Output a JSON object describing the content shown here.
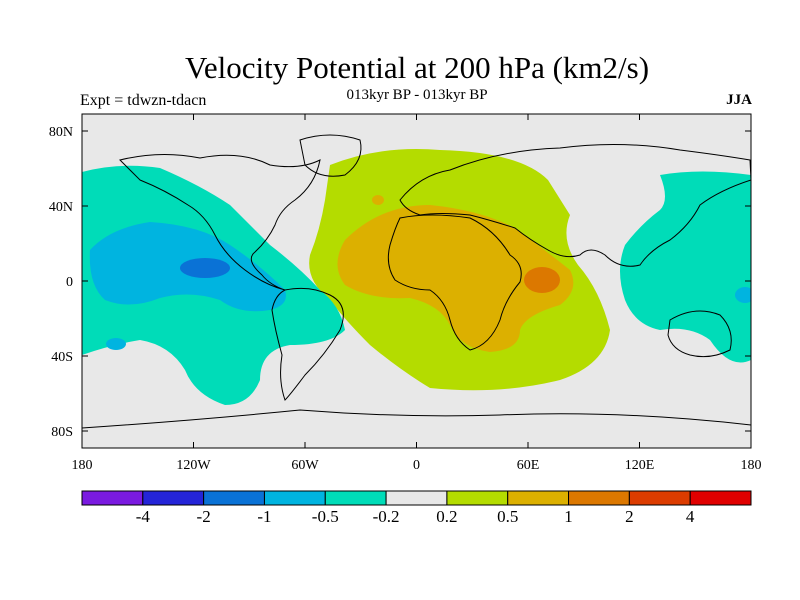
{
  "title": "Velocity Potential at 200 hPa (km2/s)",
  "subtitle": "013kyr BP - 013kyr BP",
  "left_label": "Expt = tdwzn-tdacn",
  "right_label": "JJA",
  "map": {
    "x_ticks": [
      "180",
      "120W",
      "60W",
      "0",
      "60E",
      "120E",
      "180"
    ],
    "y_ticks": [
      "80N",
      "40N",
      "0",
      "40S",
      "80S"
    ],
    "background_color": "#e8e8e8"
  },
  "colorbar": {
    "colors": [
      "#7a1ae0",
      "#2424d8",
      "#0a72d6",
      "#00b4e0",
      "#00dcb8",
      "#e8e8e8",
      "#b4dc00",
      "#dcb000",
      "#dc7800",
      "#dc3c00",
      "#e00000"
    ],
    "labels": [
      "-4",
      "-2",
      "-1",
      "-0.5",
      "-0.2",
      "0.2",
      "0.5",
      "1",
      "2",
      "4"
    ]
  }
}
